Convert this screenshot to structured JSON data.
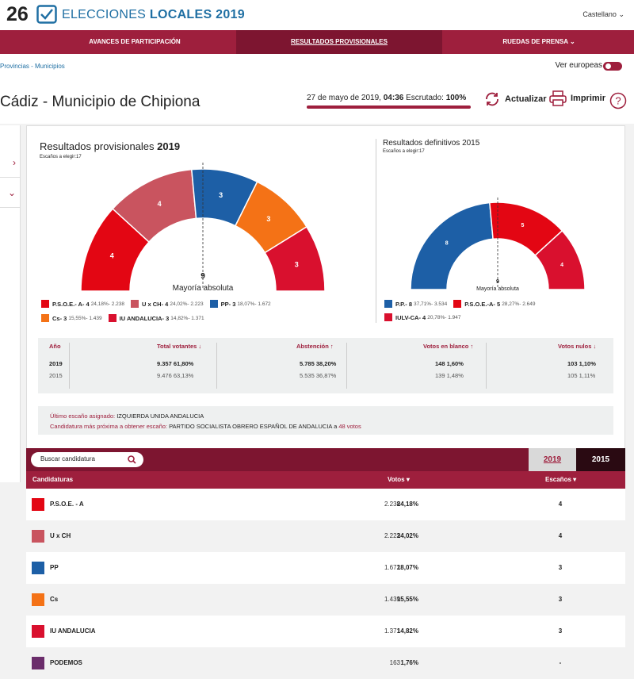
{
  "header": {
    "logo_number": "26",
    "logo_text_light": "ELECCIONES ",
    "logo_text_bold": "LOCALES 2019",
    "language": "Castellano"
  },
  "nav": {
    "items": [
      {
        "label": "AVANCES DE PARTICIPACIÓN"
      },
      {
        "label": "RESULTADOS PROVISIONALES"
      },
      {
        "label": "RUEDAS DE PRENSA"
      }
    ]
  },
  "subbar": {
    "breadcrumb": "Provincias - Municipios",
    "europeas_label": "Ver europeas"
  },
  "titlebar": {
    "title": "Cádiz - Municipio de Chipiona",
    "date_prefix": "27 de mayo de 2019, ",
    "time": "04:36",
    "scrutiny_label": "  Escrutado: ",
    "scrutiny_value": "100%",
    "refresh_label": "Actualizar",
    "print_label": "Imprimir"
  },
  "provisional": {
    "title": "Resultados provisionales",
    "year": "2019",
    "seats_to_elect": "Escaños a elegir:17",
    "majority_number": "9",
    "majority_label": "Mayoría absoluta",
    "legend": [
      {
        "name": "P.S.O.E.- A- 4",
        "detail": "24,18%- 2.238",
        "color": "#e30613"
      },
      {
        "name": "U x CH- 4",
        "detail": "24,02%- 2.223",
        "color": "#c9545f"
      },
      {
        "name": "PP- 3",
        "detail": "18,07%- 1.672",
        "color": "#1d5fa6"
      },
      {
        "name": "Cs- 3",
        "detail": "15,55%- 1.439",
        "color": "#f47216"
      },
      {
        "name": "IU ANDALUCIA- 3",
        "detail": "14,82%- 1.371",
        "color": "#d9102e"
      }
    ],
    "arc_labels": [
      "4",
      "4",
      "3",
      "3",
      "3"
    ]
  },
  "definitive": {
    "title": "Resultados definitivos",
    "year": "2015",
    "seats_to_elect": "Escaños a elegir:17",
    "majority_number": "9",
    "majority_label": "Mayoría absoluta",
    "legend": [
      {
        "name": "P.P.- 8",
        "detail": "37,71%- 3.534",
        "color": "#1d5fa6"
      },
      {
        "name": "P.S.O.E.-A- 5",
        "detail": "28,27%- 2.649",
        "color": "#e30613"
      },
      {
        "name": "IULV-CA- 4",
        "detail": "20,78%- 1.947",
        "color": "#d9102e"
      }
    ],
    "arc_labels": [
      "8",
      "5",
      "4"
    ]
  },
  "stats": {
    "headers": {
      "year": "Año",
      "voters": "Total votantes ↓",
      "abstention": "Abstención ↑",
      "blank": "Votos en blanco ↑",
      "null": "Votos nulos ↓"
    },
    "rows": [
      {
        "year": "2019",
        "voters": "9.357",
        "voters_pct": "61,80%",
        "abstention": "5.785",
        "abstention_pct": "38,20%",
        "blank": "148",
        "blank_pct": "1,60%",
        "null": "103",
        "null_pct": "1,10%"
      },
      {
        "year": "2015",
        "voters": "9.476",
        "voters_pct": "63,13%",
        "abstention": "5.535",
        "abstention_pct": "36,87%",
        "blank": "139",
        "blank_pct": "1,48%",
        "null": "105",
        "null_pct": "1,11%"
      }
    ]
  },
  "info": {
    "last_seat_label": "Último escaño asignado: ",
    "last_seat_value": "IZQUIERDA UNIDA ANDALUCIA",
    "next_label": "Candidatura más próxima a obtener escaño: ",
    "next_value": "PARTIDO SOCIALISTA OBRERO ESPAÑOL DE ANDALUCIA",
    "next_mid": " a ",
    "next_votes": "48",
    "next_suffix": " votos"
  },
  "table": {
    "search_placeholder": "Buscar candidatura",
    "year_2019": "2019",
    "year_2015": "2015",
    "headers": {
      "candidates": "Candidaturas",
      "votes": "Votos ▾",
      "seats": "Escaños ▾"
    },
    "rows": [
      {
        "name": "P.S.O.E. - A",
        "votes": "2.238",
        "pct": "24,18%",
        "seats": "4",
        "color": "#e30613"
      },
      {
        "name": "U x CH",
        "votes": "2.223",
        "pct": "24,02%",
        "seats": "4",
        "color": "#c9545f"
      },
      {
        "name": "PP",
        "votes": "1.672",
        "pct": "18,07%",
        "seats": "3",
        "color": "#1d5fa6"
      },
      {
        "name": "Cs",
        "votes": "1.439",
        "pct": "15,55%",
        "seats": "3",
        "color": "#f47216"
      },
      {
        "name": "IU ANDALUCIA",
        "votes": "1.371",
        "pct": "14,82%",
        "seats": "3",
        "color": "#d9102e"
      },
      {
        "name": "PODEMOS",
        "votes": "163",
        "pct": "1,76%",
        "seats": "-",
        "color": "#6b2d6b"
      }
    ]
  },
  "colors": {
    "brand": "#9e1f3d",
    "brand_dark": "#7d1530",
    "logo_blue": "#1f6fa3"
  }
}
